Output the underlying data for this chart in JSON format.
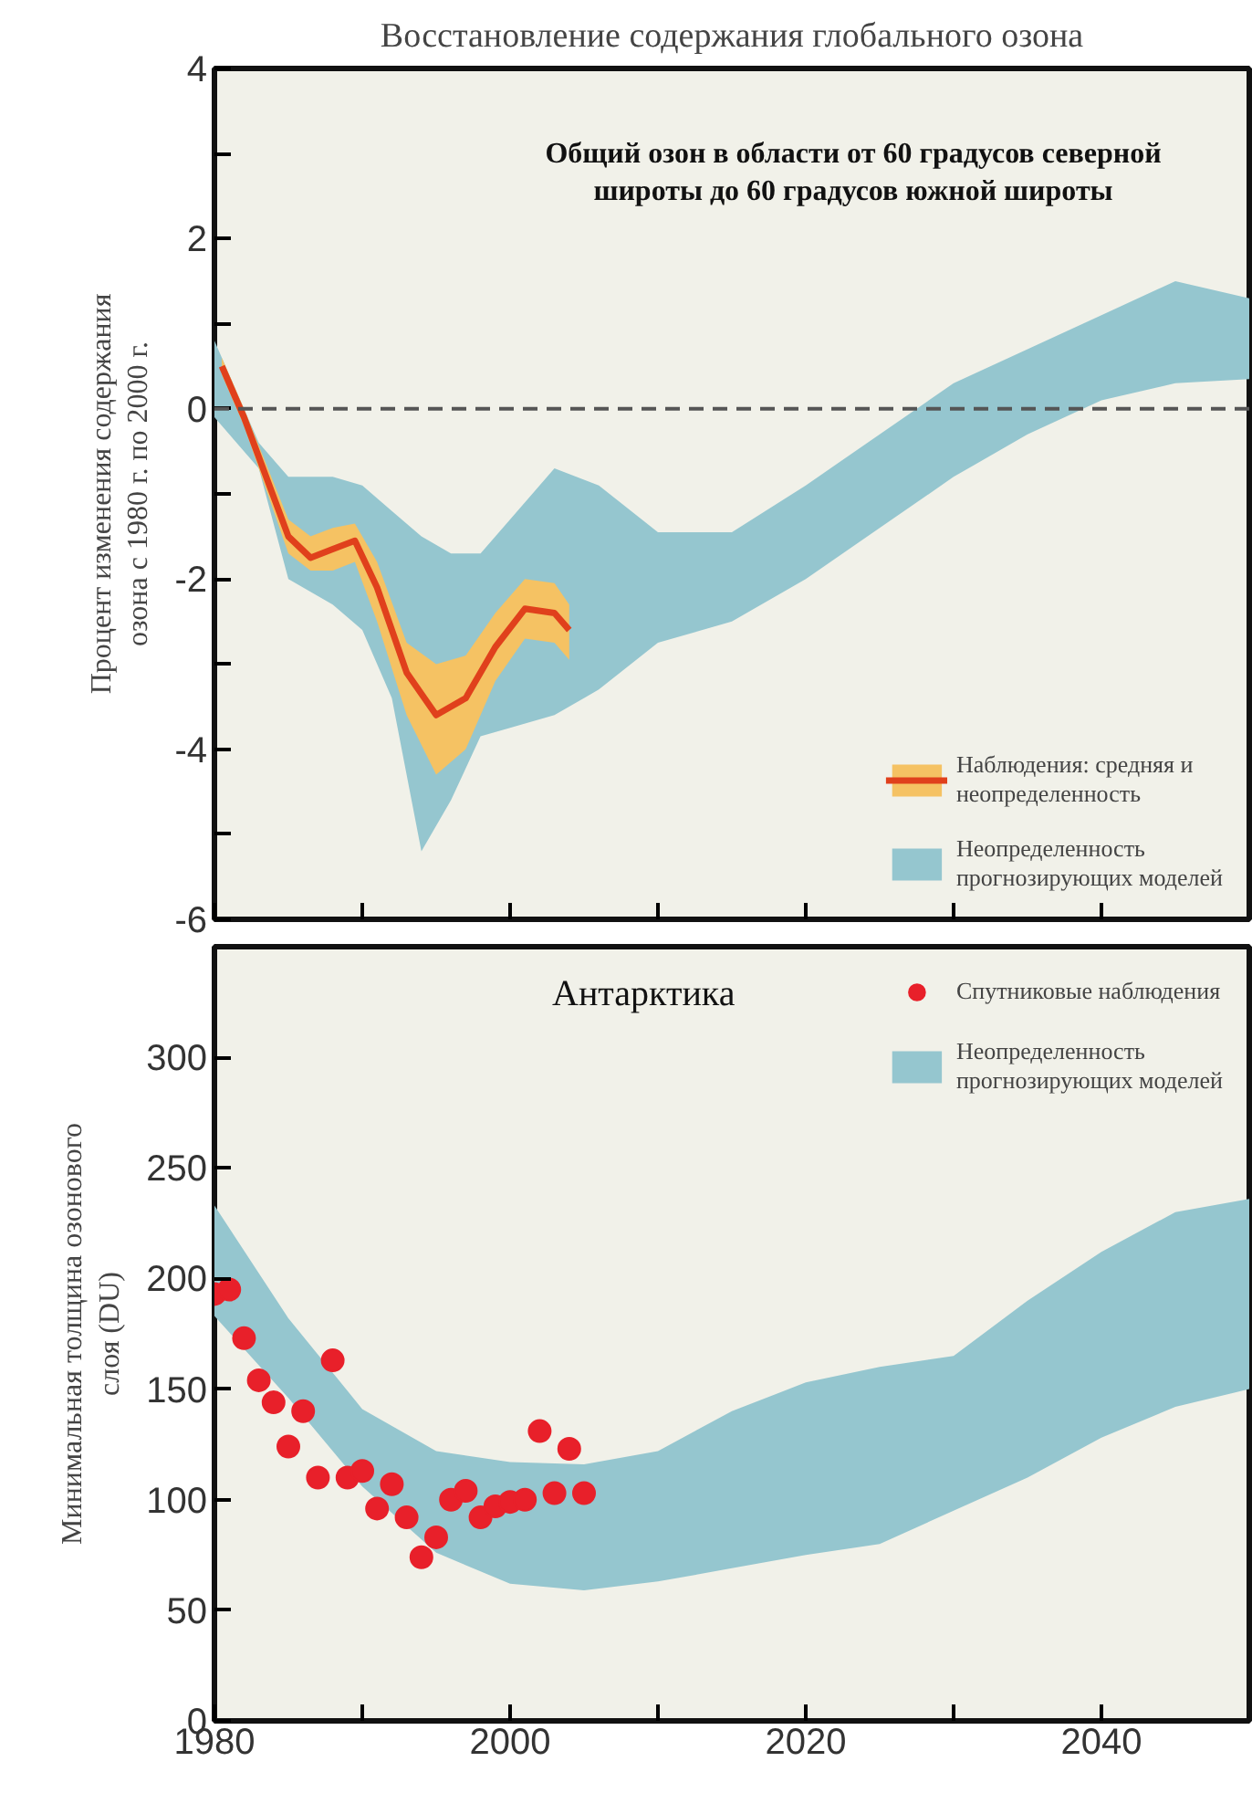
{
  "chart_data": [
    {
      "type": "line",
      "title": "Восстановление содержания глобального озона",
      "ylabel": "Процент изменения содержания озона с 1980 г. по 2000 г.",
      "annotations": [
        "Общий озон в области от 60 градусов северной широты до 60 градусов южной широты"
      ],
      "xlim": [
        1980,
        2050
      ],
      "xticks": [
        1980,
        {
          "value": 1990,
          "label": null
        },
        2000,
        {
          "value": 2010,
          "label": null
        },
        2020,
        {
          "value": 2030,
          "label": null
        },
        2040
      ],
      "ylim": [
        -6,
        4
      ],
      "yticks": [
        -6,
        {
          "value": -5,
          "label": null
        },
        -4,
        {
          "value": -3,
          "label": null
        },
        -2,
        {
          "value": -1,
          "label": null
        },
        0,
        {
          "value": 1,
          "label": null
        },
        2,
        {
          "value": 3,
          "label": null
        },
        4
      ],
      "tick_labels": "y",
      "grid": false,
      "legend": "bottom right",
      "ref_lines": [
        {
          "axis": "y",
          "value": 0,
          "color": "#555555",
          "line_style": "dashed"
        }
      ],
      "series": [
        {
          "type": "area",
          "color": "#f5c263",
          "x": [
            1980.5,
            1982,
            1983.5,
            1985,
            1986.5,
            1988,
            1989.5,
            1991,
            1993,
            1995,
            1997,
            1999,
            2001,
            2003,
            2004
          ],
          "values": [
            null,
            null,
            null,
            null,
            null,
            null,
            null,
            null,
            null,
            null,
            null,
            null,
            null,
            null,
            null
          ],
          "upper": [
            0.6,
            0.0,
            -0.65,
            -1.3,
            -1.5,
            -1.4,
            -1.35,
            -1.8,
            -2.75,
            -3.0,
            -2.9,
            -2.4,
            -2.0,
            -2.05,
            -2.3
          ],
          "lower": [
            0.4,
            -0.2,
            -0.95,
            -1.7,
            -1.9,
            -1.9,
            -1.8,
            -2.5,
            -3.6,
            -4.3,
            -4.0,
            -3.2,
            -2.7,
            -2.75,
            -2.95
          ]
        },
        {
          "name": "Наблюдения: средняя и неопределенность",
          "color": "#e0401c",
          "x": [
            1980.5,
            1982,
            1983.5,
            1985,
            1986.5,
            1988,
            1989.5,
            1991,
            1993,
            1995,
            1997,
            1999,
            2001,
            2003,
            2004
          ],
          "values": [
            0.5,
            -0.1,
            -0.8,
            -1.5,
            -1.75,
            -1.65,
            -1.55,
            -2.1,
            -3.1,
            -3.6,
            -3.4,
            -2.8,
            -2.35,
            -2.4,
            -2.6
          ]
        },
        {
          "name": "Неопределенность прогнозирующих моделей",
          "type": "area",
          "color": "#95c6cf",
          "x": [
            1980,
            1983,
            1985,
            1988,
            1990,
            1992,
            1994,
            1996,
            1998,
            2000,
            2003,
            2006,
            2010,
            2015,
            2020,
            2025,
            2030,
            2035,
            2040,
            2045,
            2050
          ],
          "values": [
            null,
            null,
            null,
            null,
            null,
            null,
            null,
            null,
            null,
            null,
            null,
            null,
            null,
            null,
            null,
            null,
            null,
            null,
            null,
            null,
            null
          ],
          "upper": [
            0.8,
            -0.4,
            -0.8,
            -0.8,
            -0.9,
            -1.2,
            -1.5,
            -1.7,
            -1.7,
            -1.3,
            -0.7,
            -0.9,
            -1.45,
            -1.45,
            -0.9,
            -0.3,
            0.3,
            0.7,
            1.1,
            1.5,
            1.3
          ],
          "lower": [
            -0.1,
            -0.7,
            -2.0,
            -2.3,
            -2.6,
            -3.4,
            -5.2,
            -4.6,
            -3.85,
            -3.75,
            -3.6,
            -3.3,
            -2.75,
            -2.5,
            -2.0,
            -1.4,
            -0.8,
            -0.3,
            0.1,
            0.3,
            0.35
          ]
        }
      ]
    },
    {
      "type": "scatter",
      "ylabel": "Минимальная толщина озонового слоя (DU)",
      "annotations": [
        "Антарктика"
      ],
      "xlim": [
        1980,
        2050
      ],
      "xticks": [
        1980,
        {
          "value": 1990,
          "label": null
        },
        2000,
        {
          "value": 2010,
          "label": null
        },
        2020,
        {
          "value": 2030,
          "label": null
        },
        2040
      ],
      "ylim": [
        0,
        350
      ],
      "yticks": [
        0,
        50,
        100,
        150,
        200,
        250,
        300
      ],
      "grid": false,
      "legend": "top right",
      "marker": "circle",
      "series": [
        {
          "name": "Спутниковые наблюдения",
          "color": "#e8202a",
          "x": [
            1980,
            1981,
            1982,
            1983,
            1984,
            1985,
            1986,
            1987,
            1988,
            1989,
            1990,
            1991,
            1992,
            1993,
            1994,
            1995,
            1996,
            1997,
            1998,
            1999,
            2000,
            2001,
            2002,
            2003,
            2004,
            2005
          ],
          "values": [
            193,
            195,
            173,
            154,
            144,
            124,
            140,
            110,
            163,
            110,
            113,
            96,
            107,
            92,
            74,
            83,
            100,
            104,
            92,
            97,
            99,
            100,
            131,
            103,
            123,
            103
          ]
        },
        {
          "name": "Неопределенность прогнозирующих моделей",
          "type": "area",
          "color": "#95c6cf",
          "x": [
            1980,
            1985,
            1990,
            1995,
            2000,
            2005,
            2010,
            2015,
            2020,
            2025,
            2030,
            2035,
            2040,
            2045,
            2050
          ],
          "values": [
            null,
            null,
            null,
            null,
            null,
            null,
            null,
            null,
            null,
            null,
            null,
            null,
            null,
            null,
            null
          ],
          "upper": [
            233,
            182,
            141,
            122,
            117,
            116,
            122,
            140,
            153,
            160,
            165,
            190,
            212,
            230,
            236
          ],
          "lower": [
            183,
            146,
            106,
            76,
            62,
            59,
            63,
            69,
            75,
            80,
            95,
            110,
            128,
            142,
            150
          ]
        }
      ]
    }
  ]
}
